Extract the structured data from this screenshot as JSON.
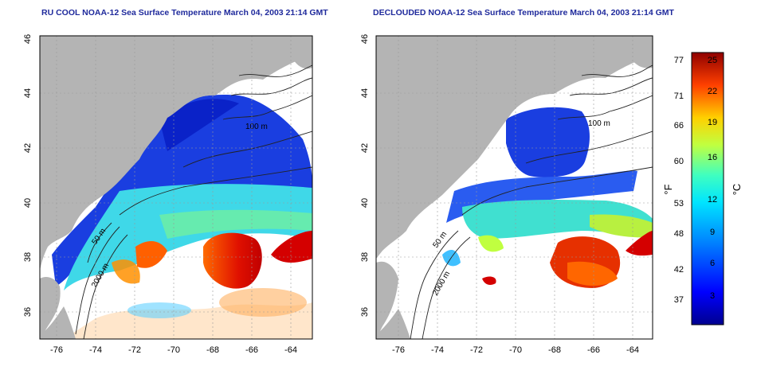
{
  "panels": [
    {
      "id": "ru-cool",
      "title": "RU COOL NOAA-12 Sea Surface Temperature March 04, 2003 21:14 GMT",
      "contours": {
        "c100": "100 m",
        "c50": "50 m",
        "c2000": "2000 m"
      }
    },
    {
      "id": "declouded",
      "title": "DECLOUDED NOAA-12 Sea Surface Temperature March 04, 2003 21:14 GMT",
      "contours": {
        "c100": "100 m",
        "c50": "50 m",
        "c2000": "2000 m"
      }
    }
  ],
  "axes": {
    "lat_ticks": [
      "36",
      "38",
      "40",
      "42",
      "44",
      "46"
    ],
    "lon_ticks": [
      "-76",
      "-74",
      "-72",
      "-70",
      "-68",
      "-66",
      "-64"
    ]
  },
  "colorbar": {
    "fahrenheit_ticks": [
      "77",
      "71",
      "66",
      "60",
      "53",
      "48",
      "42",
      "37"
    ],
    "celsius_ticks": [
      "25",
      "22",
      "19",
      "16",
      "12",
      "9",
      "6",
      "3"
    ],
    "fahrenheit_label": "°F",
    "celsius_label": "°C"
  },
  "colors": {
    "land": "#b4b4b4",
    "title": "#1f2a9c"
  }
}
